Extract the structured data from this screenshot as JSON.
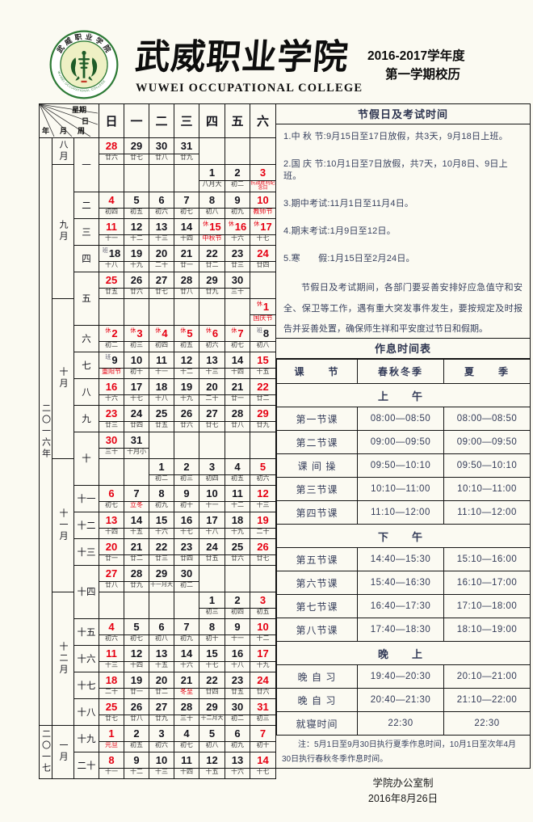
{
  "header": {
    "college_cn": "武威职业学院",
    "college_en": "WUWEI OCCUPATIONAL COLLEGE",
    "degree_year": "2016-2017学年度",
    "semester": "第一学期校历",
    "logo_ring_top": "武威职业学院",
    "logo_ring_bottom": "WUWEI OCCUPATIONAL COLLEGE"
  },
  "colors": {
    "accent_red": "#e60012",
    "ink": "#15151e",
    "panel_text": "#39425f",
    "seal_green": "#2c7a35"
  },
  "calendar": {
    "corner": {
      "week_axis": "星期",
      "day_axis": "日",
      "year": "年",
      "month": "月",
      "zhou": "周"
    },
    "day_headers": [
      "日",
      "一",
      "二",
      "三",
      "四",
      "五",
      "六"
    ],
    "years": [
      {
        "label": "二〇一六年",
        "pairs": 22
      },
      {
        "label": "二〇一七",
        "pairs": 2
      }
    ],
    "months": [
      {
        "label": "八月",
        "pairs": 1
      },
      {
        "label": "九月",
        "pairs": 5
      },
      {
        "label": "十月",
        "pairs": 6
      },
      {
        "label": "十一月",
        "pairs": 5
      },
      {
        "label": "十二月",
        "pairs": 5
      },
      {
        "label": "一月",
        "pairs": 2
      }
    ],
    "weeks": [
      {
        "label": "一",
        "pairs": 2
      },
      {
        "label": "二",
        "pairs": 1
      },
      {
        "label": "三",
        "pairs": 1
      },
      {
        "label": "四",
        "pairs": 1
      },
      {
        "label": "五",
        "pairs": 2
      },
      {
        "label": "六",
        "pairs": 1
      },
      {
        "label": "七",
        "pairs": 1
      },
      {
        "label": "八",
        "pairs": 1
      },
      {
        "label": "九",
        "pairs": 1
      },
      {
        "label": "十",
        "pairs": 2
      },
      {
        "label": "十一",
        "pairs": 1
      },
      {
        "label": "十二",
        "pairs": 1
      },
      {
        "label": "十三",
        "pairs": 1
      },
      {
        "label": "十四",
        "pairs": 2
      },
      {
        "label": "十五",
        "pairs": 1
      },
      {
        "label": "十六",
        "pairs": 1
      },
      {
        "label": "十七",
        "pairs": 1
      },
      {
        "label": "十八",
        "pairs": 1
      },
      {
        "label": "十九",
        "pairs": 1
      },
      {
        "label": "二十",
        "pairs": 1
      }
    ],
    "pairs": [
      [
        {
          "d": "28",
          "l": "廿六",
          "r": 1
        },
        {
          "d": "29",
          "l": "廿七"
        },
        {
          "d": "30",
          "l": "廿八"
        },
        {
          "d": "31",
          "l": "廿九"
        },
        null,
        null,
        null
      ],
      [
        null,
        null,
        null,
        null,
        {
          "d": "1",
          "l": "八月大"
        },
        {
          "d": "2",
          "l": "初二"
        },
        {
          "d": "3",
          "l": "抗战胜利纪念日",
          "r": 1,
          "R": 1
        }
      ],
      [
        {
          "d": "4",
          "l": "初四",
          "r": 1
        },
        {
          "d": "5",
          "l": "初五"
        },
        {
          "d": "6",
          "l": "初六"
        },
        {
          "d": "7",
          "l": "初七"
        },
        {
          "d": "8",
          "l": "初八"
        },
        {
          "d": "9",
          "l": "初九"
        },
        {
          "d": "10",
          "l": "教师节",
          "r": 1,
          "R": 1
        }
      ],
      [
        {
          "d": "11",
          "l": "十一",
          "r": 1
        },
        {
          "d": "12",
          "l": "十二"
        },
        {
          "d": "13",
          "l": "十三"
        },
        {
          "d": "14",
          "l": "十四"
        },
        {
          "d": "15",
          "l": "中秋节",
          "r": 1,
          "R": 1,
          "s": "休"
        },
        {
          "d": "16",
          "l": "十六",
          "r": 1,
          "s": "休"
        },
        {
          "d": "17",
          "l": "十七",
          "r": 1,
          "s": "休"
        }
      ],
      [
        {
          "d": "18",
          "l": "十八",
          "s": "班"
        },
        {
          "d": "19",
          "l": "十九"
        },
        {
          "d": "20",
          "l": "二十"
        },
        {
          "d": "21",
          "l": "廿一"
        },
        {
          "d": "22",
          "l": "廿二"
        },
        {
          "d": "23",
          "l": "廿三"
        },
        {
          "d": "24",
          "l": "廿四",
          "r": 1
        }
      ],
      [
        {
          "d": "25",
          "l": "廿五",
          "r": 1
        },
        {
          "d": "26",
          "l": "廿六"
        },
        {
          "d": "27",
          "l": "廿七"
        },
        {
          "d": "28",
          "l": "廿八"
        },
        {
          "d": "29",
          "l": "廿九"
        },
        {
          "d": "30",
          "l": "三十"
        },
        null
      ],
      [
        null,
        null,
        null,
        null,
        null,
        null,
        {
          "d": "1",
          "l": "国庆节",
          "r": 1,
          "R": 1,
          "s": "休"
        }
      ],
      [
        {
          "d": "2",
          "l": "初二",
          "r": 1,
          "s": "休"
        },
        {
          "d": "3",
          "l": "初三",
          "r": 1,
          "s": "休"
        },
        {
          "d": "4",
          "l": "初四",
          "r": 1,
          "s": "休"
        },
        {
          "d": "5",
          "l": "初五",
          "r": 1,
          "s": "休"
        },
        {
          "d": "6",
          "l": "初六",
          "r": 1,
          "s": "休"
        },
        {
          "d": "7",
          "l": "初七",
          "r": 1,
          "s": "休"
        },
        {
          "d": "8",
          "l": "初八",
          "s": "班"
        }
      ],
      [
        {
          "d": "9",
          "l": "重阳节",
          "R": 1,
          "s": "班"
        },
        {
          "d": "10",
          "l": "初十"
        },
        {
          "d": "11",
          "l": "十一"
        },
        {
          "d": "12",
          "l": "十二"
        },
        {
          "d": "13",
          "l": "十三"
        },
        {
          "d": "14",
          "l": "十四"
        },
        {
          "d": "15",
          "l": "十五",
          "r": 1
        }
      ],
      [
        {
          "d": "16",
          "l": "十六",
          "r": 1
        },
        {
          "d": "17",
          "l": "十七"
        },
        {
          "d": "18",
          "l": "十八"
        },
        {
          "d": "19",
          "l": "十九"
        },
        {
          "d": "20",
          "l": "二十"
        },
        {
          "d": "21",
          "l": "廿一"
        },
        {
          "d": "22",
          "l": "廿二",
          "r": 1
        }
      ],
      [
        {
          "d": "23",
          "l": "廿三",
          "r": 1
        },
        {
          "d": "24",
          "l": "廿四"
        },
        {
          "d": "25",
          "l": "廿五"
        },
        {
          "d": "26",
          "l": "廿六"
        },
        {
          "d": "27",
          "l": "廿七"
        },
        {
          "d": "28",
          "l": "廿八"
        },
        {
          "d": "29",
          "l": "廿九",
          "r": 1
        }
      ],
      [
        {
          "d": "30",
          "l": "三十",
          "r": 1
        },
        {
          "d": "31",
          "l": "十月小"
        },
        null,
        null,
        null,
        null,
        null
      ],
      [
        null,
        null,
        {
          "d": "1",
          "l": "初二"
        },
        {
          "d": "2",
          "l": "初三"
        },
        {
          "d": "3",
          "l": "初四"
        },
        {
          "d": "4",
          "l": "初五"
        },
        {
          "d": "5",
          "l": "初六",
          "r": 1
        }
      ],
      [
        {
          "d": "6",
          "l": "初七",
          "r": 1
        },
        {
          "d": "7",
          "l": "立冬",
          "R": 1
        },
        {
          "d": "8",
          "l": "初九"
        },
        {
          "d": "9",
          "l": "初十"
        },
        {
          "d": "10",
          "l": "十一"
        },
        {
          "d": "11",
          "l": "十二"
        },
        {
          "d": "12",
          "l": "十三",
          "r": 1
        }
      ],
      [
        {
          "d": "13",
          "l": "十四",
          "r": 1
        },
        {
          "d": "14",
          "l": "十五"
        },
        {
          "d": "15",
          "l": "十六"
        },
        {
          "d": "16",
          "l": "十七"
        },
        {
          "d": "17",
          "l": "十八"
        },
        {
          "d": "18",
          "l": "十九"
        },
        {
          "d": "19",
          "l": "二十",
          "r": 1
        }
      ],
      [
        {
          "d": "20",
          "l": "廿一",
          "r": 1
        },
        {
          "d": "21",
          "l": "廿二"
        },
        {
          "d": "22",
          "l": "廿三"
        },
        {
          "d": "23",
          "l": "廿四"
        },
        {
          "d": "24",
          "l": "廿五"
        },
        {
          "d": "25",
          "l": "廿六"
        },
        {
          "d": "26",
          "l": "廿七",
          "r": 1
        }
      ],
      [
        {
          "d": "27",
          "l": "廿八",
          "r": 1
        },
        {
          "d": "28",
          "l": "廿九"
        },
        {
          "d": "29",
          "l": "十一月大"
        },
        {
          "d": "30",
          "l": "初二"
        },
        null,
        null,
        null
      ],
      [
        null,
        null,
        null,
        null,
        {
          "d": "1",
          "l": "初三"
        },
        {
          "d": "2",
          "l": "初四"
        },
        {
          "d": "3",
          "l": "初五",
          "r": 1
        }
      ],
      [
        {
          "d": "4",
          "l": "初六",
          "r": 1
        },
        {
          "d": "5",
          "l": "初七"
        },
        {
          "d": "6",
          "l": "初八"
        },
        {
          "d": "7",
          "l": "初九"
        },
        {
          "d": "8",
          "l": "初十"
        },
        {
          "d": "9",
          "l": "十一"
        },
        {
          "d": "10",
          "l": "十二",
          "r": 1
        }
      ],
      [
        {
          "d": "11",
          "l": "十三",
          "r": 1
        },
        {
          "d": "12",
          "l": "十四"
        },
        {
          "d": "13",
          "l": "十五"
        },
        {
          "d": "14",
          "l": "十六"
        },
        {
          "d": "15",
          "l": "十七"
        },
        {
          "d": "16",
          "l": "十八"
        },
        {
          "d": "17",
          "l": "十九",
          "r": 1
        }
      ],
      [
        {
          "d": "18",
          "l": "二十",
          "r": 1
        },
        {
          "d": "19",
          "l": "廿一"
        },
        {
          "d": "20",
          "l": "廿二"
        },
        {
          "d": "21",
          "l": "冬至",
          "R": 1
        },
        {
          "d": "22",
          "l": "廿四"
        },
        {
          "d": "23",
          "l": "廿五"
        },
        {
          "d": "24",
          "l": "廿六",
          "r": 1
        }
      ],
      [
        {
          "d": "25",
          "l": "廿七",
          "r": 1
        },
        {
          "d": "26",
          "l": "廿八"
        },
        {
          "d": "27",
          "l": "廿九"
        },
        {
          "d": "28",
          "l": "三十"
        },
        {
          "d": "29",
          "l": "十二月大"
        },
        {
          "d": "30",
          "l": "初二"
        },
        {
          "d": "31",
          "l": "初三",
          "r": 1
        }
      ],
      [
        {
          "d": "1",
          "l": "元旦",
          "r": 1,
          "R": 1
        },
        {
          "d": "2",
          "l": "初五"
        },
        {
          "d": "3",
          "l": "初六"
        },
        {
          "d": "4",
          "l": "初七"
        },
        {
          "d": "5",
          "l": "初八"
        },
        {
          "d": "6",
          "l": "初九"
        },
        {
          "d": "7",
          "l": "初十",
          "r": 1
        }
      ],
      [
        {
          "d": "8",
          "l": "十一",
          "r": 1
        },
        {
          "d": "9",
          "l": "十二"
        },
        {
          "d": "10",
          "l": "十三"
        },
        {
          "d": "11",
          "l": "十四"
        },
        {
          "d": "12",
          "l": "十五"
        },
        {
          "d": "13",
          "l": "十六"
        },
        {
          "d": "14",
          "l": "十七",
          "r": 1
        }
      ]
    ]
  },
  "holiday": {
    "title": "节假日及考试时间",
    "items": [
      "1.中 秋 节:9月15日至17日放假，共3天，9月18日上班。",
      "2.国 庆 节:10月1日至7日放假，共7天，10月8日、9日上班。",
      "3.期中考试:11月1日至11月4日。",
      "4.期末考试:1月9日至12日。",
      "5.寒　　假:1月15日至2月24日。"
    ],
    "notice": "节假日及考试期间，各部门要妥善安排好应急值守和安全、保卫等工作，遇有重大突发事件发生，要按规定及时报告并妥善处置，确保师生祥和平安度过节日和假期。"
  },
  "schedule": {
    "title": "作息时间表",
    "rows": [
      {
        "t": "head",
        "c": [
          "课　　节",
          "春秋冬季",
          "夏　　季"
        ]
      },
      {
        "t": "section",
        "c": "上　午"
      },
      {
        "t": "row",
        "c": [
          "第一节课",
          "08:00—08:50",
          "08:00—08:50"
        ]
      },
      {
        "t": "row",
        "c": [
          "第二节课",
          "09:00—09:50",
          "09:00—09:50"
        ]
      },
      {
        "t": "row",
        "c": [
          "课 间 操",
          "09:50—10:10",
          "09:50—10:10"
        ]
      },
      {
        "t": "row",
        "c": [
          "第三节课",
          "10:10—11:00",
          "10:10—11:00"
        ]
      },
      {
        "t": "row",
        "c": [
          "第四节课",
          "11:10—12:00",
          "11:10—12:00"
        ]
      },
      {
        "t": "section",
        "c": "下　午"
      },
      {
        "t": "row",
        "c": [
          "第五节课",
          "14:40—15:30",
          "15:10—16:00"
        ]
      },
      {
        "t": "row",
        "c": [
          "第六节课",
          "15:40—16:30",
          "16:10—17:00"
        ]
      },
      {
        "t": "row",
        "c": [
          "第七节课",
          "16:40—17:30",
          "17:10—18:00"
        ]
      },
      {
        "t": "row",
        "c": [
          "第八节课",
          "17:40—18:30",
          "18:10—19:00"
        ]
      },
      {
        "t": "section",
        "c": "晚　上"
      },
      {
        "t": "row",
        "c": [
          "晚 自 习",
          "19:40—20:30",
          "20:10—21:00"
        ]
      },
      {
        "t": "row",
        "c": [
          "晚 自 习",
          "20:40—21:30",
          "21:10—22:00"
        ]
      },
      {
        "t": "row",
        "c": [
          "就寝时间",
          "22:30",
          "22:30"
        ]
      }
    ],
    "note": "注：5月1日至9月30日执行夏季作息时间，10月1日至次年4月30日执行春秋冬季作息时间。"
  },
  "footer": {
    "line1": "学院办公室制",
    "line2": "2016年8月26日"
  }
}
